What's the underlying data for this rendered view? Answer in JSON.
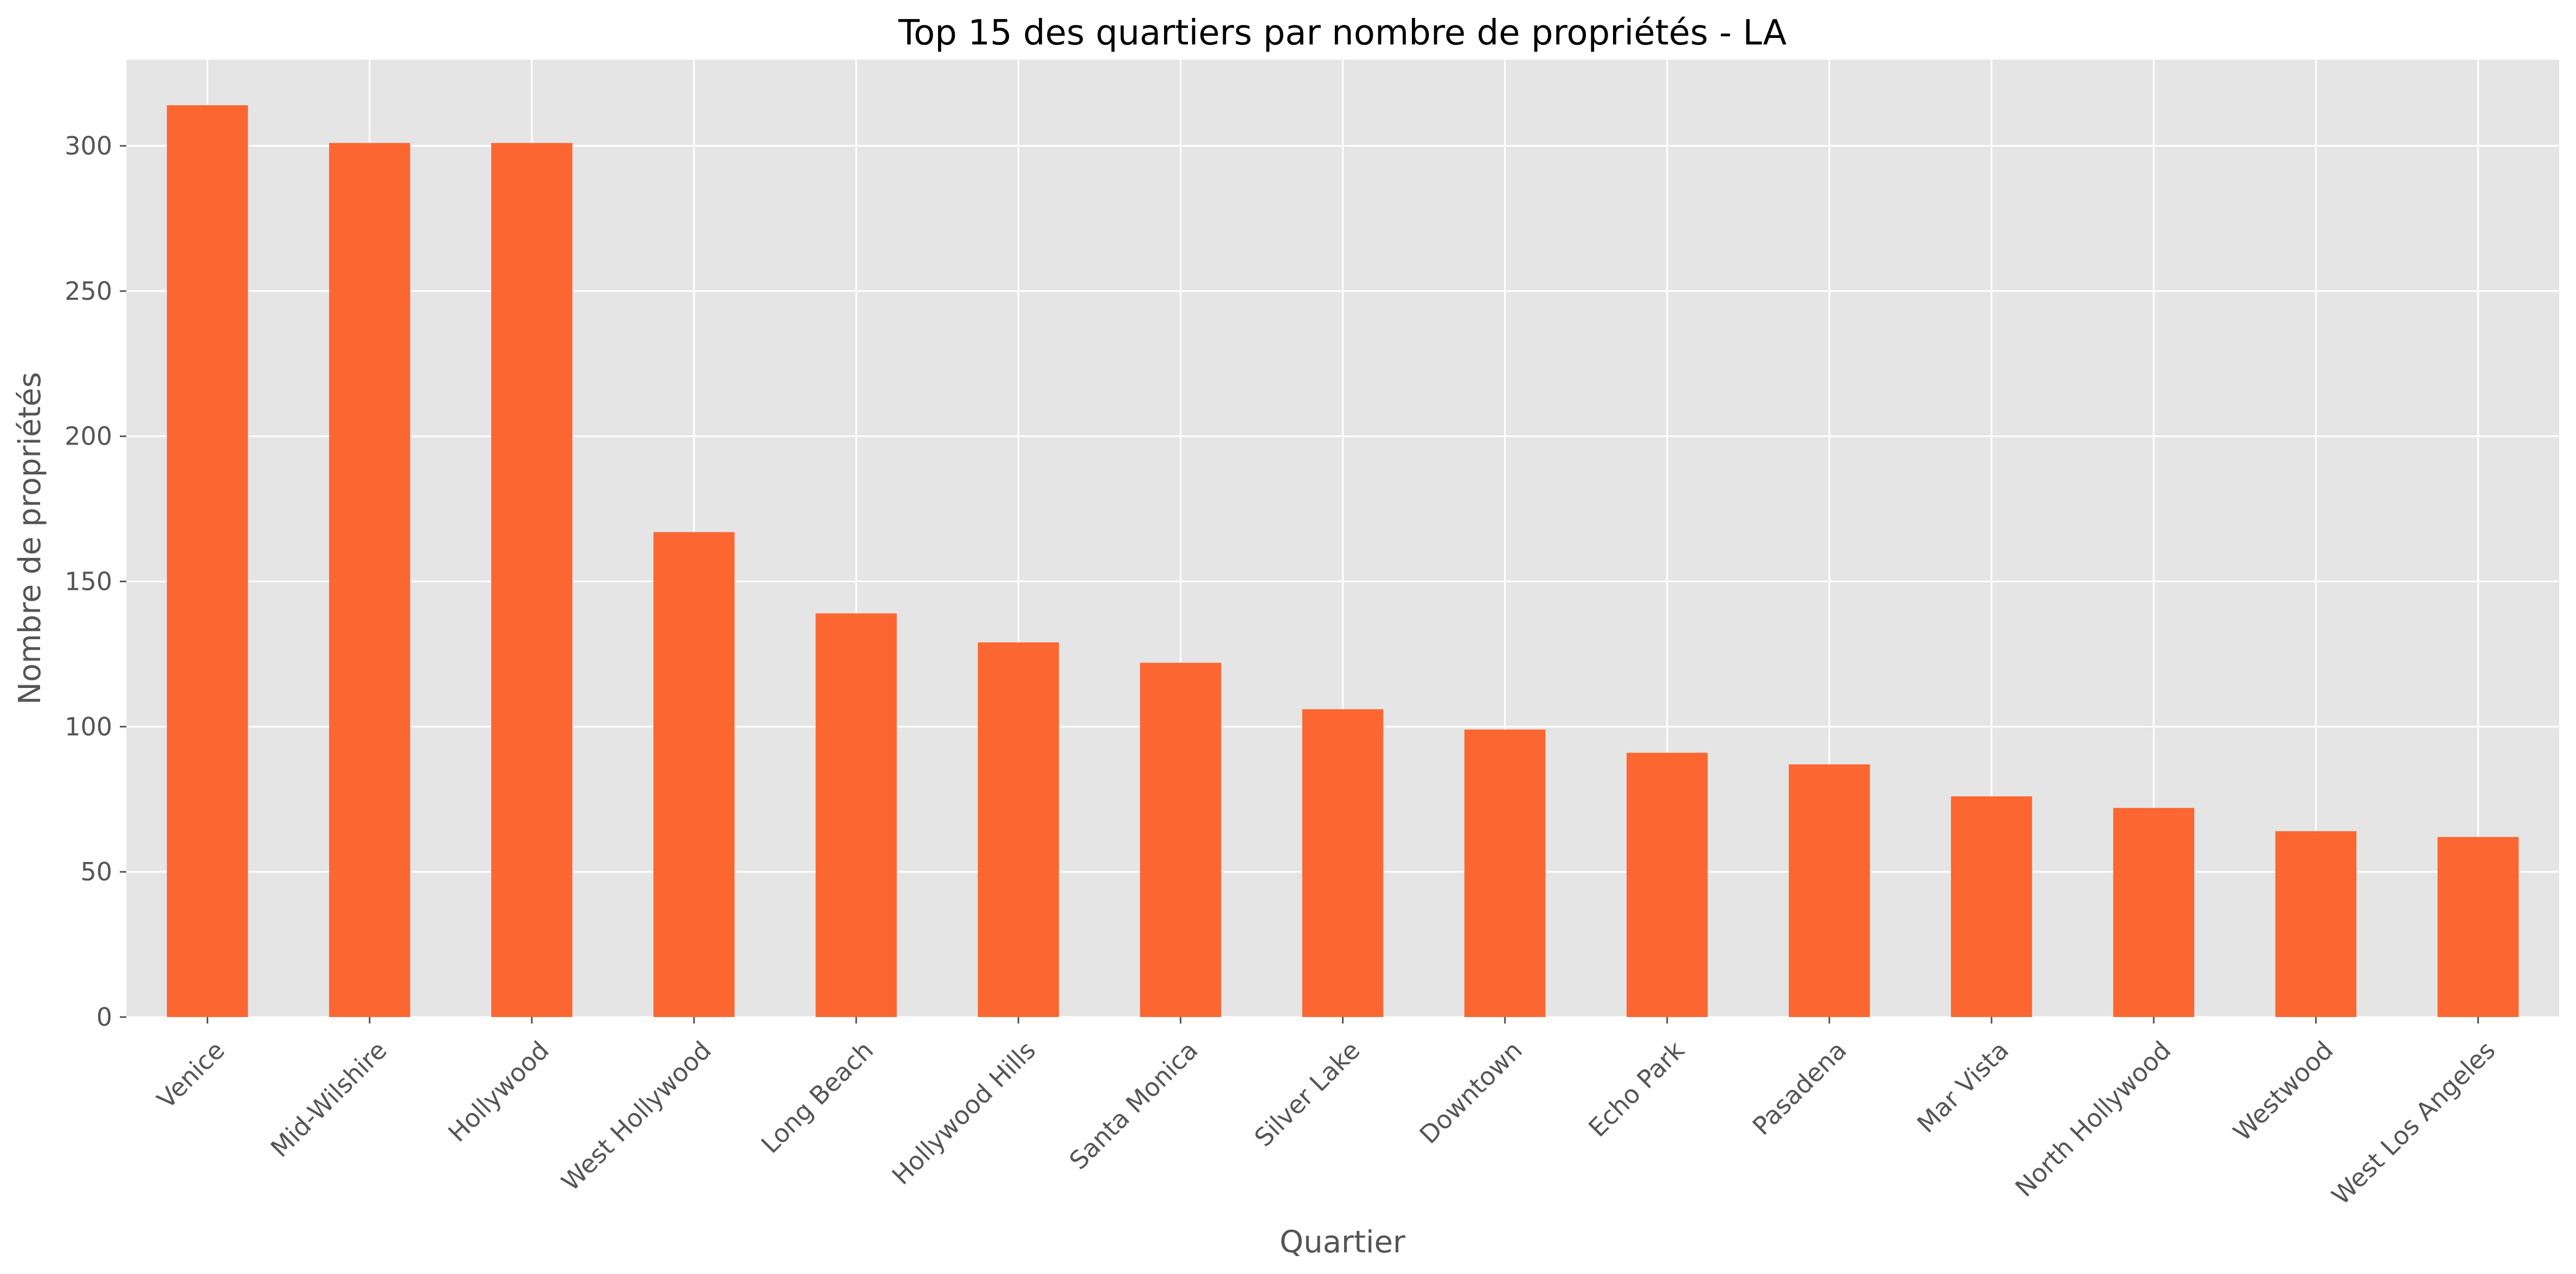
{
  "chart_data": {
    "type": "bar",
    "title": "Top 15 des quartiers par nombre de propriétés - LA",
    "xlabel": "Quartier",
    "ylabel": "Nombre de propriétés",
    "categories": [
      "Venice",
      "Mid-Wilshire",
      "Hollywood",
      "West Hollywood",
      "Long Beach",
      "Hollywood Hills",
      "Santa Monica",
      "Silver Lake",
      "Downtown",
      "Echo Park",
      "Pasadena",
      "Mar Vista",
      "North Hollywood",
      "Westwood",
      "West Los Angeles"
    ],
    "values": [
      314,
      301,
      301,
      167,
      139,
      129,
      122,
      106,
      99,
      91,
      87,
      76,
      72,
      64,
      62
    ],
    "yticks": [
      0,
      50,
      100,
      150,
      200,
      250,
      300
    ],
    "ylim": [
      0,
      329.7
    ],
    "grid": true,
    "legend": "none",
    "colors": {
      "bar": "#fc6631",
      "plot_background": "#e5e5e5",
      "grid": "#ffffff",
      "text": "#555555",
      "title": "#000000"
    }
  }
}
